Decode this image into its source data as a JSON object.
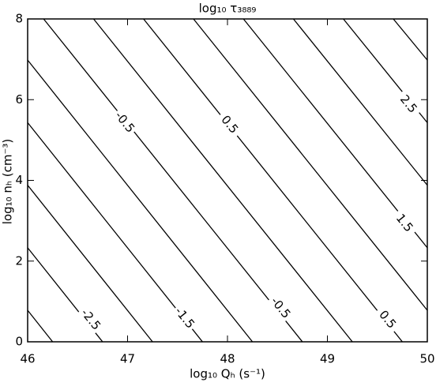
{
  "chart_data": {
    "type": "contour",
    "title": "log₁₀ τ₃₈₈₉",
    "xlabel": "log₁₀ Qₕ (s⁻¹)",
    "ylabel": "log₁₀ nₕ (cm⁻³)",
    "xlim": [
      46,
      50
    ],
    "ylim": [
      0,
      8
    ],
    "xticks": [
      46,
      47,
      48,
      49,
      50
    ],
    "yticks": [
      0,
      2,
      4,
      6,
      8
    ],
    "color": "#000000",
    "contours": [
      {
        "level": -3,
        "x": [
          46,
          46.25
        ],
        "y": [
          0.78,
          0
        ]
      },
      {
        "level": -2.5,
        "x": [
          46,
          46.75
        ],
        "y": [
          2.33,
          0
        ]
      },
      {
        "level": -2,
        "x": [
          46,
          47.25
        ],
        "y": [
          3.88,
          0
        ]
      },
      {
        "level": -1.5,
        "x": [
          46,
          47.75
        ],
        "y": [
          5.43,
          0
        ]
      },
      {
        "level": -1,
        "x": [
          46,
          48.25
        ],
        "y": [
          6.98,
          0
        ]
      },
      {
        "level": -0.5,
        "x": [
          46.16,
          48.75
        ],
        "y": [
          8,
          0
        ]
      },
      {
        "level": 0,
        "x": [
          46.66,
          49.25
        ],
        "y": [
          8,
          0
        ]
      },
      {
        "level": 0.5,
        "x": [
          47.16,
          49.75
        ],
        "y": [
          8,
          0
        ]
      },
      {
        "level": 1,
        "x": [
          47.66,
          50
        ],
        "y": [
          8,
          0.78
        ]
      },
      {
        "level": 1.5,
        "x": [
          48.16,
          50
        ],
        "y": [
          8,
          2.33
        ]
      },
      {
        "level": 2,
        "x": [
          48.66,
          50
        ],
        "y": [
          8,
          3.88
        ]
      },
      {
        "level": 2.5,
        "x": [
          49.16,
          50
        ],
        "y": [
          8,
          5.43
        ]
      },
      {
        "level": 3,
        "x": [
          49.66,
          50
        ],
        "y": [
          8,
          6.98
        ]
      }
    ],
    "contour_labels": [
      {
        "value": -2.5,
        "x": 46.63,
        "y": 0.55
      },
      {
        "value": -1.5,
        "x": 47.57,
        "y": 0.59
      },
      {
        "value": -0.5,
        "x": 48.53,
        "y": 0.84
      },
      {
        "value": 0.5,
        "x": 49.6,
        "y": 0.55
      },
      {
        "value": -0.5,
        "x": 46.97,
        "y": 5.44
      },
      {
        "value": 0.5,
        "x": 48.02,
        "y": 5.38
      },
      {
        "value": 1.5,
        "x": 49.77,
        "y": 2.94
      },
      {
        "value": 2.5,
        "x": 49.81,
        "y": 5.89
      }
    ]
  }
}
